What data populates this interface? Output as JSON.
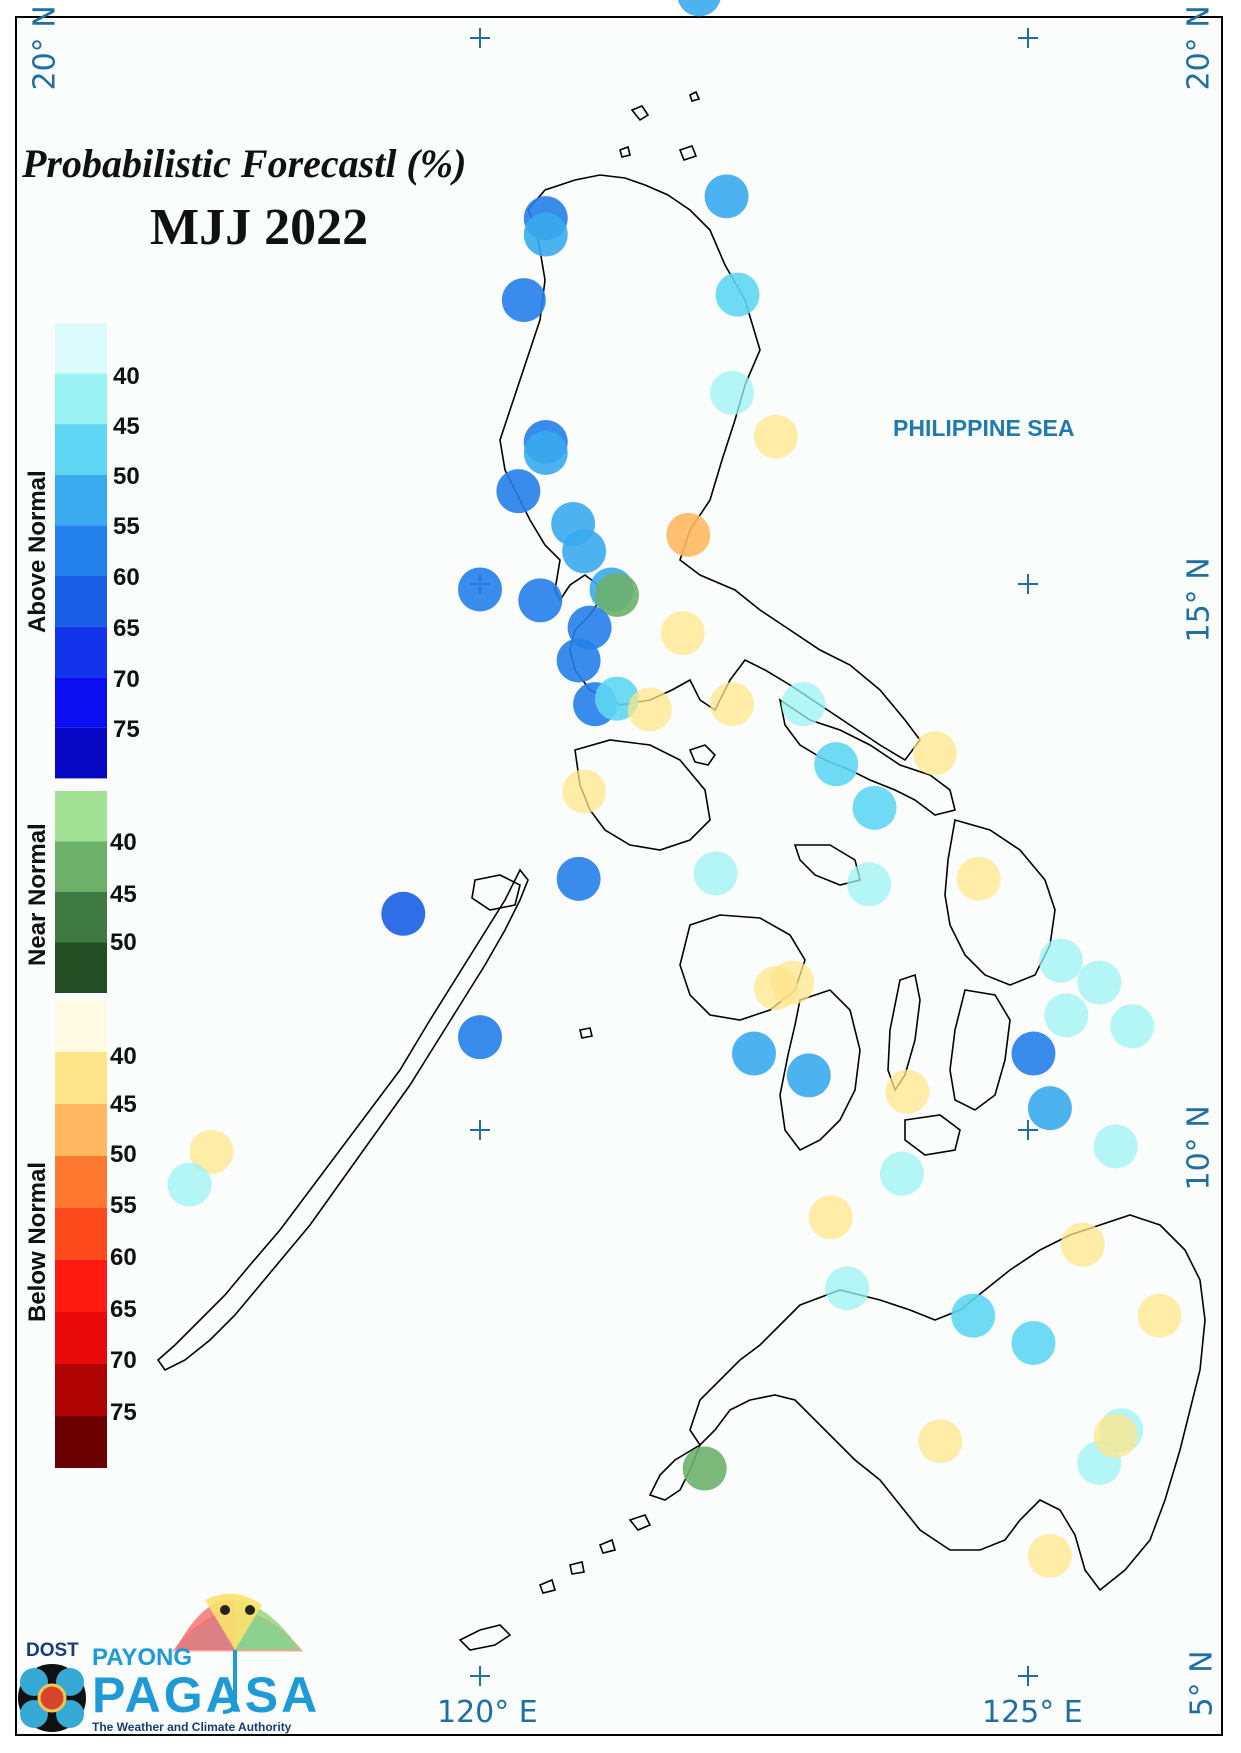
{
  "map": {
    "title_line1": "Probabilistic Forecastl (%)",
    "title_line2": "MJJ 2022",
    "sea_label": "PHILIPPINE SEA",
    "lat_labels": [
      "20° N",
      "15° N",
      "10° N",
      "5° N"
    ],
    "lon_labels": [
      "120° E",
      "125° E"
    ],
    "coastline_color": "#000000"
  },
  "legend": {
    "above_normal": {
      "label": "Above Normal",
      "ticks": [
        "40",
        "45",
        "50",
        "55",
        "60",
        "65",
        "70",
        "75"
      ],
      "colors": [
        "#dcfbfb",
        "#9cf3f3",
        "#5fd6f3",
        "#3aaaee",
        "#2480ea",
        "#1a5ee6",
        "#1234ea",
        "#0a0ef0",
        "#0808c4"
      ]
    },
    "near_normal": {
      "label": "Near Normal",
      "ticks": [
        "40",
        "45",
        "50"
      ],
      "colors": [
        "#a2e295",
        "#6db06a",
        "#3f7a43",
        "#244d24"
      ]
    },
    "below_normal": {
      "label": "Below Normal",
      "ticks": [
        "40",
        "45",
        "50",
        "55",
        "60",
        "65",
        "70",
        "75"
      ],
      "colors": [
        "#fffbe2",
        "#ffe58a",
        "#ffb860",
        "#ff7a30",
        "#ff4a1e",
        "#ff1a12",
        "#e80a0a",
        "#b00404",
        "#6a0000"
      ]
    }
  },
  "stations": [
    {
      "lon": 122.0,
      "lat": 20.4,
      "prob": "above-50"
    },
    {
      "lon": 122.25,
      "lat": 18.55,
      "prob": "above-50"
    },
    {
      "lon": 120.6,
      "lat": 18.35,
      "prob": "above-55"
    },
    {
      "lon": 120.6,
      "lat": 18.2,
      "prob": "above-50"
    },
    {
      "lon": 120.4,
      "lat": 17.6,
      "prob": "above-55"
    },
    {
      "lon": 122.35,
      "lat": 17.65,
      "prob": "above-45"
    },
    {
      "lon": 122.3,
      "lat": 16.75,
      "prob": "above-40"
    },
    {
      "lon": 120.6,
      "lat": 16.3,
      "prob": "above-55"
    },
    {
      "lon": 120.6,
      "lat": 16.2,
      "prob": "above-50"
    },
    {
      "lon": 122.7,
      "lat": 16.35,
      "prob": "below-40"
    },
    {
      "lon": 120.35,
      "lat": 15.85,
      "prob": "above-55"
    },
    {
      "lon": 120.85,
      "lat": 15.55,
      "prob": "above-50"
    },
    {
      "lon": 120.95,
      "lat": 15.3,
      "prob": "above-50"
    },
    {
      "lon": 121.9,
      "lat": 15.45,
      "prob": "below-45"
    },
    {
      "lon": 120.0,
      "lat": 14.95,
      "prob": "above-55"
    },
    {
      "lon": 120.55,
      "lat": 14.85,
      "prob": "above-55"
    },
    {
      "lon": 121.2,
      "lat": 14.95,
      "prob": "above-50"
    },
    {
      "lon": 121.25,
      "lat": 14.9,
      "prob": "near-40"
    },
    {
      "lon": 121.0,
      "lat": 14.6,
      "prob": "above-55"
    },
    {
      "lon": 120.9,
      "lat": 14.3,
      "prob": "above-55"
    },
    {
      "lon": 121.85,
      "lat": 14.55,
      "prob": "below-40"
    },
    {
      "lon": 121.05,
      "lat": 13.9,
      "prob": "above-55"
    },
    {
      "lon": 121.25,
      "lat": 13.95,
      "prob": "above-45"
    },
    {
      "lon": 121.55,
      "lat": 13.85,
      "prob": "below-40"
    },
    {
      "lon": 122.3,
      "lat": 13.9,
      "prob": "below-40"
    },
    {
      "lon": 122.95,
      "lat": 13.9,
      "prob": "above-40"
    },
    {
      "lon": 123.25,
      "lat": 13.35,
      "prob": "above-45"
    },
    {
      "lon": 123.6,
      "lat": 12.95,
      "prob": "above-45"
    },
    {
      "lon": 124.15,
      "lat": 13.45,
      "prob": "below-40"
    },
    {
      "lon": 120.95,
      "lat": 13.1,
      "prob": "below-40"
    },
    {
      "lon": 122.15,
      "lat": 12.35,
      "prob": "above-40"
    },
    {
      "lon": 120.9,
      "lat": 12.3,
      "prob": "above-55"
    },
    {
      "lon": 119.3,
      "lat": 11.98,
      "prob": "above-60"
    },
    {
      "lon": 124.55,
      "lat": 12.3,
      "prob": "below-40"
    },
    {
      "lon": 123.55,
      "lat": 12.25,
      "prob": "above-40"
    },
    {
      "lon": 125.3,
      "lat": 11.55,
      "prob": "above-40"
    },
    {
      "lon": 125.65,
      "lat": 11.35,
      "prob": "above-40"
    },
    {
      "lon": 122.85,
      "lat": 11.35,
      "prob": "below-40"
    },
    {
      "lon": 122.7,
      "lat": 11.3,
      "prob": "below-40"
    },
    {
      "lon": 125.35,
      "lat": 11.05,
      "prob": "above-40"
    },
    {
      "lon": 125.95,
      "lat": 10.95,
      "prob": "above-40"
    },
    {
      "lon": 120.0,
      "lat": 10.85,
      "prob": "above-55"
    },
    {
      "lon": 122.5,
      "lat": 10.7,
      "prob": "above-50"
    },
    {
      "lon": 125.05,
      "lat": 10.7,
      "prob": "above-55"
    },
    {
      "lon": 123.0,
      "lat": 10.5,
      "prob": "above-50"
    },
    {
      "lon": 123.9,
      "lat": 10.35,
      "prob": "below-40"
    },
    {
      "lon": 125.2,
      "lat": 10.2,
      "prob": "above-50"
    },
    {
      "lon": 125.8,
      "lat": 9.85,
      "prob": "above-40"
    },
    {
      "lon": 123.85,
      "lat": 9.6,
      "prob": "above-40"
    },
    {
      "lon": 117.55,
      "lat": 9.8,
      "prob": "below-40"
    },
    {
      "lon": 117.35,
      "lat": 9.5,
      "prob": "above-40"
    },
    {
      "lon": 123.2,
      "lat": 9.2,
      "prob": "below-40"
    },
    {
      "lon": 125.5,
      "lat": 8.95,
      "prob": "below-40"
    },
    {
      "lon": 123.35,
      "lat": 8.55,
      "prob": "above-40"
    },
    {
      "lon": 124.5,
      "lat": 8.3,
      "prob": "above-45"
    },
    {
      "lon": 125.05,
      "lat": 8.05,
      "prob": "above-45"
    },
    {
      "lon": 126.2,
      "lat": 8.3,
      "prob": "below-40"
    },
    {
      "lon": 124.2,
      "lat": 7.15,
      "prob": "below-40"
    },
    {
      "lon": 125.85,
      "lat": 7.25,
      "prob": "above-40"
    },
    {
      "lon": 125.65,
      "lat": 6.95,
      "prob": "above-40"
    },
    {
      "lon": 125.8,
      "lat": 7.2,
      "prob": "below-40"
    },
    {
      "lon": 122.05,
      "lat": 6.9,
      "prob": "near-40"
    },
    {
      "lon": 125.2,
      "lat": 6.1,
      "prob": "below-40"
    }
  ],
  "logo": {
    "dost": "DOST",
    "payong": "PAYONG",
    "pagasa": "PAGASA",
    "tagline": "The Weather and Climate Authority"
  }
}
